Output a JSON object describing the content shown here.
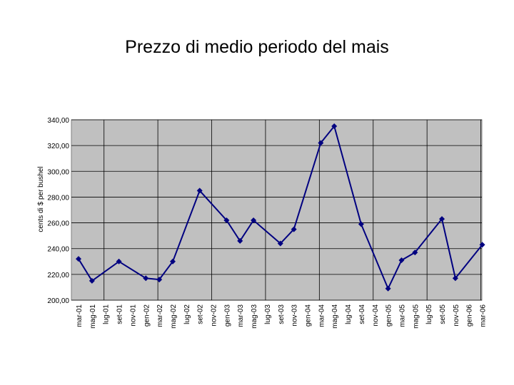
{
  "chart_data": {
    "type": "line",
    "title": "Prezzo di medio periodo del mais",
    "ylabel": "cents di $ per bushel",
    "xlabel": "",
    "ylim": [
      200,
      340
    ],
    "yticks": [
      "340,00",
      "320,00",
      "300,00",
      "280,00",
      "260,00",
      "240,00",
      "220,00",
      "200,00"
    ],
    "grid": true,
    "categories": [
      "mar-01",
      "mag-01",
      "lug-01",
      "set-01",
      "nov-01",
      "gen-02",
      "mar-02",
      "mag-02",
      "lug-02",
      "set-02",
      "nov-02",
      "gen-03",
      "mar-03",
      "mag-03",
      "lug-03",
      "set-03",
      "nov-03",
      "gen-04",
      "mar-04",
      "mag-04",
      "lug-04",
      "set-04",
      "nov-04",
      "gen-05",
      "mar-05",
      "mag-05",
      "lug-05",
      "set-05",
      "nov-05",
      "gen-06",
      "mar-06"
    ],
    "points": [
      {
        "x": "mar-01",
        "y": 232
      },
      {
        "x": "mag-01",
        "y": 215
      },
      {
        "x": "set-01",
        "y": 230
      },
      {
        "x": "gen-02",
        "y": 217
      },
      {
        "x": "mar-02",
        "y": 216
      },
      {
        "x": "mag-02",
        "y": 230
      },
      {
        "x": "set-02",
        "y": 285
      },
      {
        "x": "gen-03",
        "y": 262
      },
      {
        "x": "mar-03",
        "y": 246
      },
      {
        "x": "mag-03",
        "y": 262
      },
      {
        "x": "set-03",
        "y": 244
      },
      {
        "x": "nov-03",
        "y": 255
      },
      {
        "x": "mar-04",
        "y": 322
      },
      {
        "x": "mag-04",
        "y": 335
      },
      {
        "x": "set-04",
        "y": 259
      },
      {
        "x": "gen-05",
        "y": 209
      },
      {
        "x": "mar-05",
        "y": 231
      },
      {
        "x": "mag-05",
        "y": 237
      },
      {
        "x": "set-05",
        "y": 263
      },
      {
        "x": "nov-05",
        "y": 217
      },
      {
        "x": "mar-06",
        "y": 243
      }
    ],
    "colors": {
      "line": "#000080",
      "plot_bg": "#c0c0c0",
      "grid": "#000000"
    }
  }
}
